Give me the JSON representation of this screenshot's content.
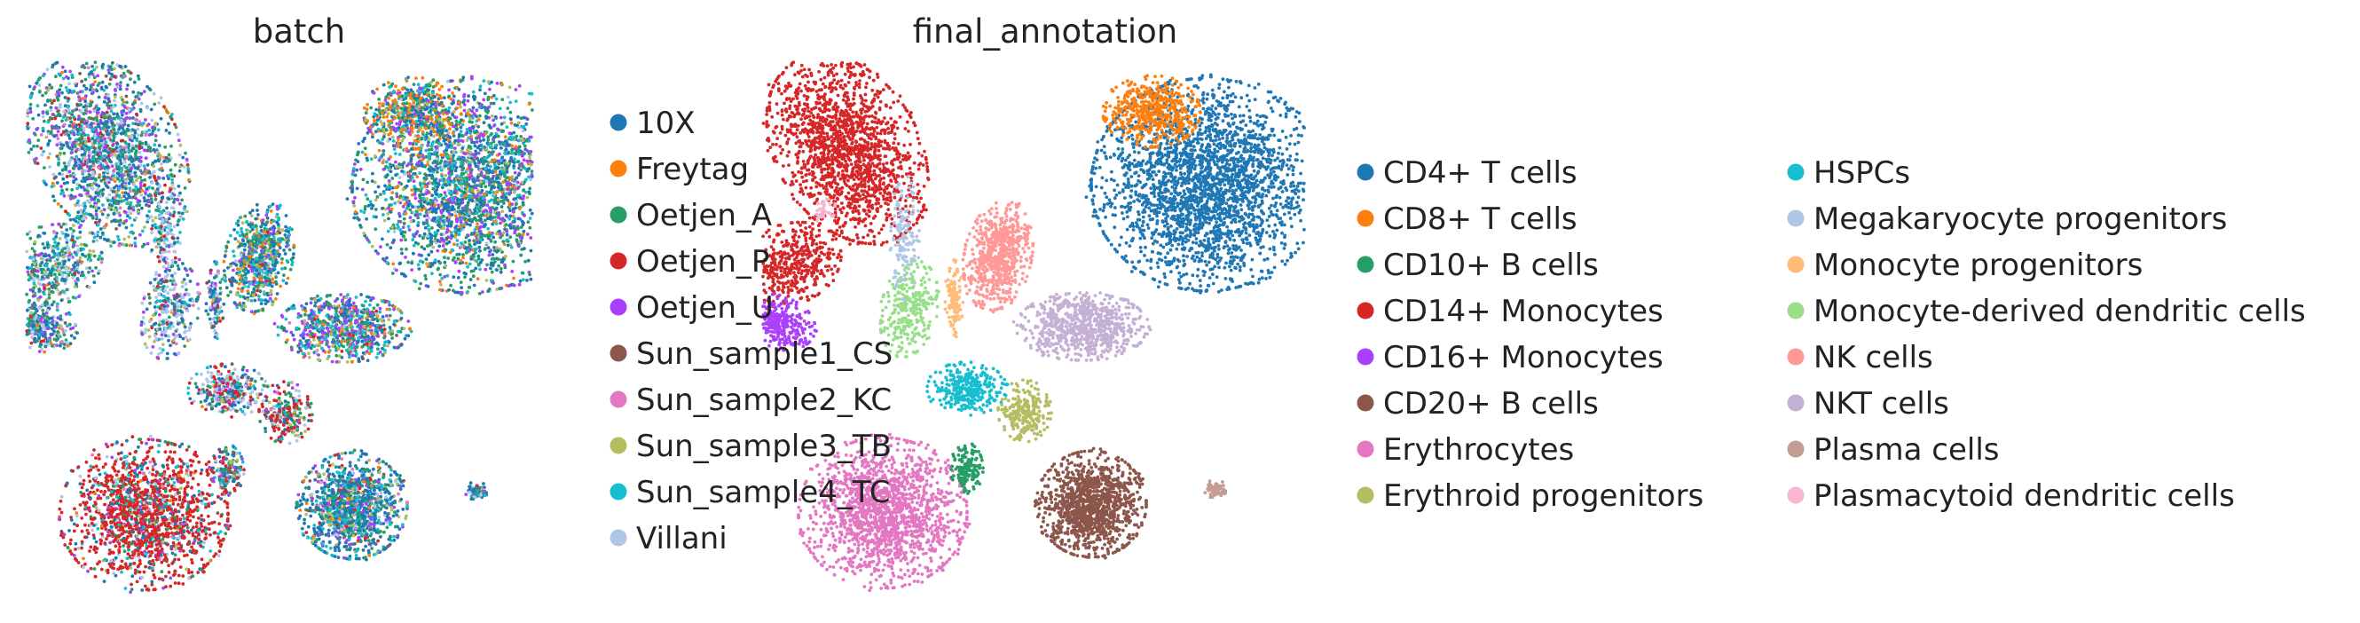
{
  "chart_data": [
    {
      "type": "scatter",
      "subtype": "umap-embedding",
      "title": "batch",
      "xlabel": "",
      "ylabel": "",
      "grid": false,
      "legend_placement": "right",
      "legend": [
        {
          "name": "10X",
          "color": "#1f77b4"
        },
        {
          "name": "Freytag",
          "color": "#ff7f0e"
        },
        {
          "name": "Oetjen_A",
          "color": "#279e68"
        },
        {
          "name": "Oetjen_P",
          "color": "#d62728"
        },
        {
          "name": "Oetjen_U",
          "color": "#aa40fc"
        },
        {
          "name": "Sun_sample1_CS",
          "color": "#8c564b"
        },
        {
          "name": "Sun_sample2_KC",
          "color": "#e377c2"
        },
        {
          "name": "Sun_sample3_TB",
          "color": "#b5bd61"
        },
        {
          "name": "Sun_sample4_TC",
          "color": "#17becf"
        },
        {
          "name": "Villani",
          "color": "#aec7e8"
        }
      ]
    },
    {
      "type": "scatter",
      "subtype": "umap-embedding",
      "title": "final_annotation",
      "xlabel": "",
      "ylabel": "",
      "grid": false,
      "legend_placement": "right",
      "legend": [
        {
          "name": "CD4+ T cells",
          "color": "#1f77b4"
        },
        {
          "name": "CD8+ T cells",
          "color": "#ff7f0e"
        },
        {
          "name": "CD10+ B cells",
          "color": "#279e68"
        },
        {
          "name": "CD14+ Monocytes",
          "color": "#d62728"
        },
        {
          "name": "CD16+ Monocytes",
          "color": "#aa40fc"
        },
        {
          "name": "CD20+ B cells",
          "color": "#8c564b"
        },
        {
          "name": "Erythrocytes",
          "color": "#e377c2"
        },
        {
          "name": "Erythroid progenitors",
          "color": "#b5bd61"
        },
        {
          "name": "HSPCs",
          "color": "#17becf"
        },
        {
          "name": "Megakaryocyte progenitors",
          "color": "#aec7e8"
        },
        {
          "name": "Monocyte progenitors",
          "color": "#ffbb78"
        },
        {
          "name": "Monocyte-derived dendritic cells",
          "color": "#98df8a"
        },
        {
          "name": "NK cells",
          "color": "#ff9896"
        },
        {
          "name": "NKT cells",
          "color": "#c5b0d5"
        },
        {
          "name": "Plasma cells",
          "color": "#c49c94"
        },
        {
          "name": "Plasmacytoid dendritic cells",
          "color": "#f7b6d2"
        }
      ]
    }
  ]
}
